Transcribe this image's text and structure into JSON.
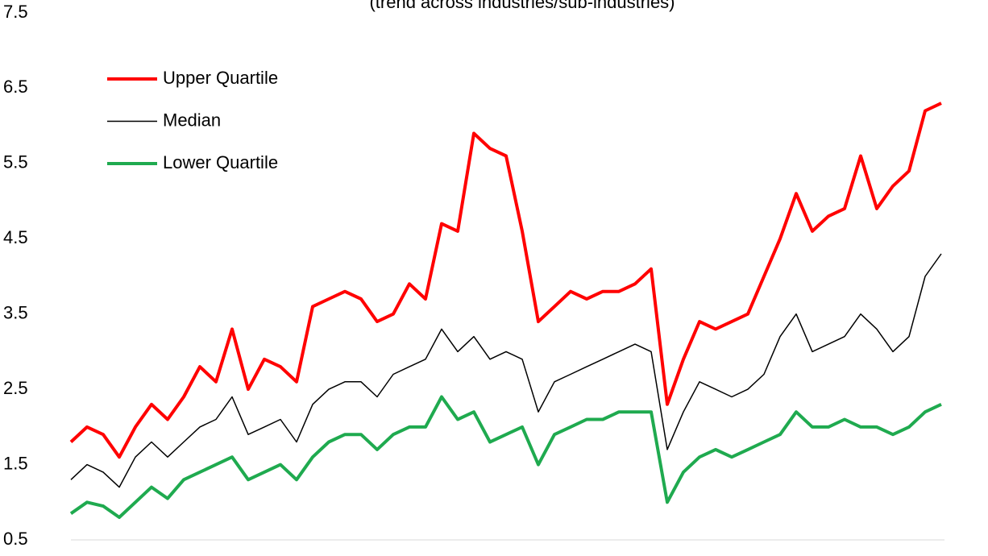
{
  "chart_data": {
    "type": "line",
    "subtitle": "(trend across industries/sub-industries)",
    "categories": [
      null,
      null,
      null,
      null,
      null,
      null,
      null,
      null,
      null,
      null,
      null,
      null,
      null,
      null,
      null,
      null,
      null,
      null,
      null,
      null,
      null,
      null,
      null,
      null,
      null,
      null,
      null,
      null,
      null,
      null,
      null,
      null,
      null,
      null,
      null,
      null,
      null,
      null,
      null,
      null,
      null,
      null,
      null,
      null,
      null,
      null,
      null,
      null,
      null,
      null,
      null,
      null,
      null,
      null,
      null
    ],
    "series": [
      {
        "name": "Upper Quartile",
        "color": "#ff0000",
        "values": [
          1.8,
          2.0,
          1.9,
          1.6,
          2.0,
          2.3,
          2.1,
          2.4,
          2.8,
          2.6,
          3.3,
          2.5,
          2.9,
          2.8,
          2.6,
          3.6,
          3.7,
          3.8,
          3.7,
          3.4,
          3.5,
          3.9,
          3.7,
          4.7,
          4.6,
          5.9,
          5.7,
          5.6,
          4.6,
          3.4,
          3.6,
          3.8,
          3.7,
          3.8,
          3.8,
          3.9,
          4.1,
          2.3,
          2.9,
          3.4,
          3.3,
          3.4,
          3.5,
          4.0,
          4.5,
          5.1,
          4.6,
          4.8,
          4.9,
          5.6,
          4.9,
          5.2,
          5.4,
          6.2,
          6.3
        ]
      },
      {
        "name": "Median",
        "color": "#000000",
        "values": [
          1.3,
          1.5,
          1.4,
          1.2,
          1.6,
          1.8,
          1.6,
          1.8,
          2.0,
          2.1,
          2.4,
          1.9,
          2.0,
          2.1,
          1.8,
          2.3,
          2.5,
          2.6,
          2.6,
          2.4,
          2.7,
          2.8,
          2.9,
          3.3,
          3.0,
          3.2,
          2.9,
          3.0,
          2.9,
          2.2,
          2.6,
          2.7,
          2.8,
          2.9,
          3.0,
          3.1,
          3.0,
          1.7,
          2.2,
          2.6,
          2.5,
          2.4,
          2.5,
          2.7,
          3.2,
          3.5,
          3.0,
          3.1,
          3.2,
          3.5,
          3.3,
          3.0,
          3.2,
          4.0,
          4.3
        ]
      },
      {
        "name": "Lower Quartile",
        "color": "#1faa4f",
        "values": [
          0.85,
          1.0,
          0.95,
          0.8,
          1.0,
          1.2,
          1.05,
          1.3,
          1.4,
          1.5,
          1.6,
          1.3,
          1.4,
          1.5,
          1.3,
          1.6,
          1.8,
          1.9,
          1.9,
          1.7,
          1.9,
          2.0,
          2.0,
          2.4,
          2.1,
          2.2,
          1.8,
          1.9,
          2.0,
          1.5,
          1.9,
          2.0,
          2.1,
          2.1,
          2.2,
          2.2,
          2.2,
          1.0,
          1.4,
          1.6,
          1.7,
          1.6,
          1.7,
          1.8,
          1.9,
          2.2,
          2.0,
          2.0,
          2.1,
          2.0,
          2.0,
          1.9,
          2.0,
          2.2,
          2.3
        ]
      }
    ],
    "ylim": [
      0.5,
      7.5
    ],
    "yticks": [
      0.5,
      1.5,
      2.5,
      3.5,
      4.5,
      5.5,
      6.5,
      7.5
    ]
  }
}
